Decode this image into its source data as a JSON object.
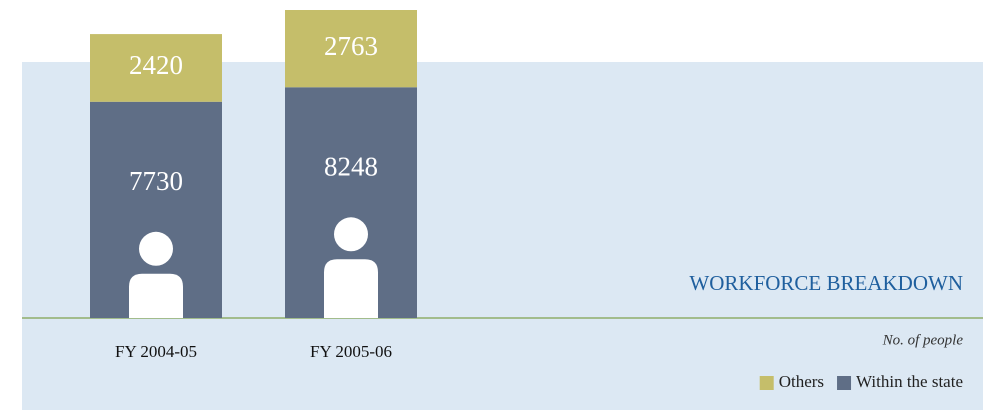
{
  "chart_data": {
    "type": "stacked_bar",
    "title": "WORKFORCE BREAKDOWN",
    "unit_label": "No. of people",
    "categories": [
      "FY 2004-05",
      "FY 2005-06"
    ],
    "series": [
      {
        "name": "Others",
        "color": "#c5be6a",
        "values": [
          2420,
          2763
        ]
      },
      {
        "name": "Within the state",
        "color": "#5f6e86",
        "values": [
          7730,
          8248
        ]
      }
    ]
  }
}
